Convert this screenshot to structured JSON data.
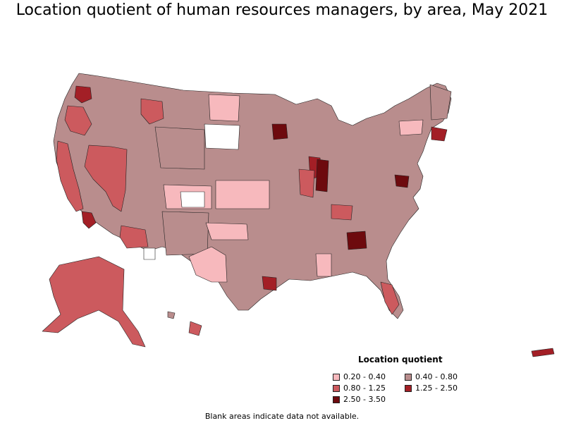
{
  "title": "Location quotient of human resources managers, by area, May 2021",
  "legend": {
    "title": "Location quotient",
    "items": [
      {
        "label": "0.20 - 0.40",
        "color": "#f7b9bd"
      },
      {
        "label": "0.40 - 0.80",
        "color": "#b98d8d"
      },
      {
        "label": "0.80 - 1.25",
        "color": "#cc5a5e"
      },
      {
        "label": "1.25 - 2.50",
        "color": "#a31f26"
      },
      {
        "label": "2.50 - 3.50",
        "color": "#6d0a0e"
      }
    ]
  },
  "footnote": "Blank areas indicate data not available.",
  "colors": {
    "no_data": "#ffffff",
    "border": "#222222"
  }
}
